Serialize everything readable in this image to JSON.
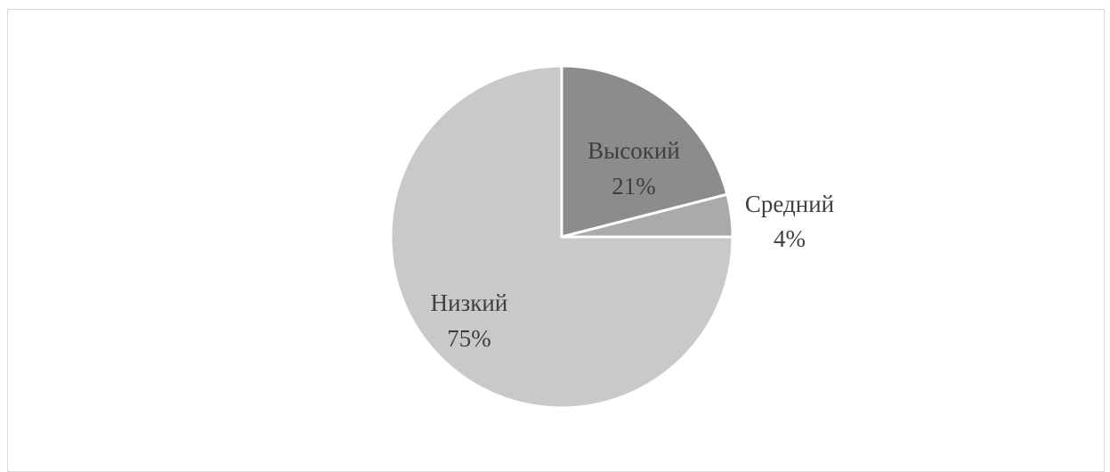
{
  "chart_data": {
    "type": "pie",
    "title": "",
    "start_angle_deg": 0,
    "direction": "clockwise",
    "slices": [
      {
        "label": "Высокий",
        "percent_label": "21%",
        "value": 21,
        "color": "#8c8c8c"
      },
      {
        "label": "Средний",
        "percent_label": "4%",
        "value": 4,
        "color": "#aaaaaa"
      },
      {
        "label": "Низкий",
        "percent_label": "75%",
        "value": 75,
        "color": "#c9c9c9"
      }
    ]
  },
  "colors": {
    "slice_border": "#ffffff",
    "frame_border": "#d9d9d9",
    "label_text": "#3f3f3f"
  }
}
